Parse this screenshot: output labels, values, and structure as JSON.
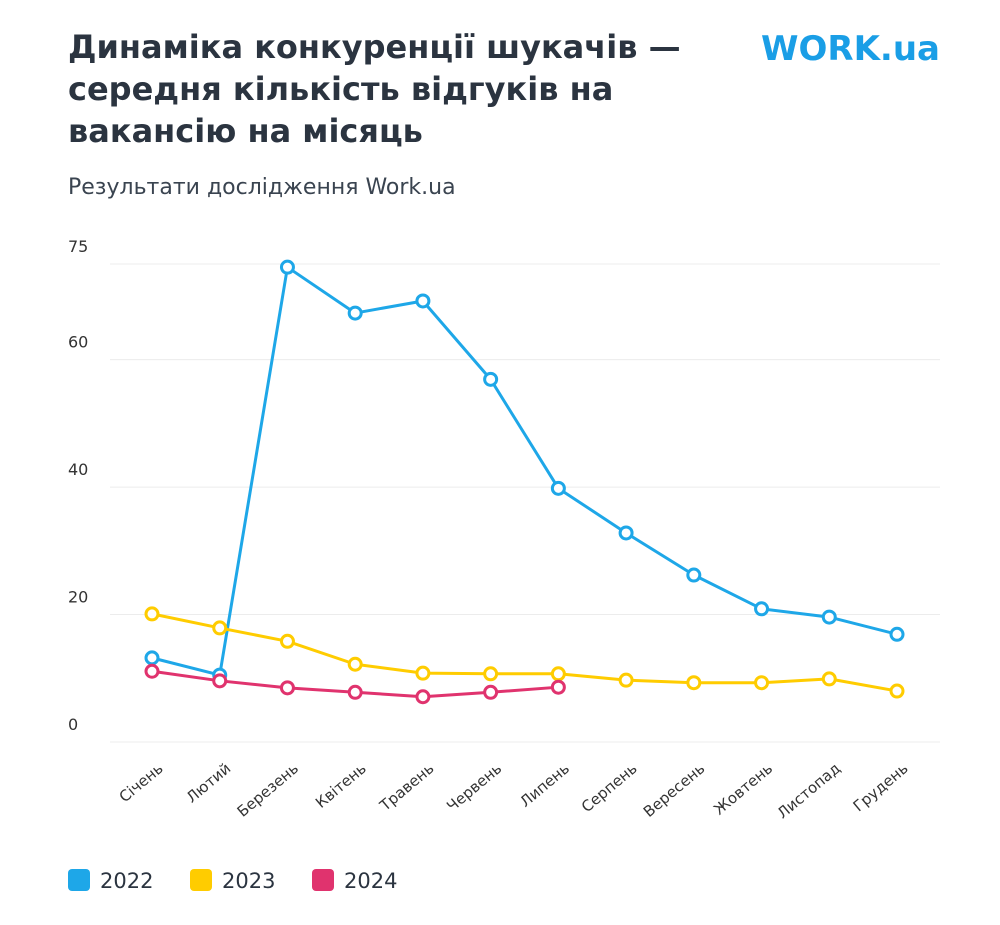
{
  "chart_data": {
    "type": "line",
    "title": [
      "Динаміка конкуренції шукачів —",
      "середня кількість відгуків на",
      "вакансію на місяць"
    ],
    "subtitle": "Результати дослідження Work.ua",
    "logo": "WORK.ua",
    "categories": [
      "Січень",
      "Лютий",
      "Березень",
      "Квітень",
      "Травень",
      "Червень",
      "Липень",
      "Серпень",
      "Вересень",
      "Жовтень",
      "Листопад",
      "Грудень"
    ],
    "series": [
      {
        "name": "2022",
        "color": "#1ea7e8",
        "values": [
          13.2,
          10.5,
          74.5,
          67.3,
          69.2,
          56.9,
          39.8,
          32.8,
          26.2,
          20.9,
          19.6,
          16.9
        ]
      },
      {
        "name": "2023",
        "color": "#ffcc00",
        "values": [
          20.1,
          17.9,
          15.8,
          12.2,
          10.8,
          10.7,
          10.7,
          9.7,
          9.3,
          9.3,
          9.9,
          8.0
        ]
      },
      {
        "name": "2024",
        "color": "#e0336e",
        "values": [
          11.1,
          9.6,
          8.5,
          7.8,
          7.1,
          7.8,
          8.6,
          null,
          null,
          null,
          null,
          null
        ]
      }
    ],
    "ylim": [
      0,
      75
    ],
    "yticks": [
      0,
      20,
      40,
      60,
      75
    ],
    "grid": true
  }
}
